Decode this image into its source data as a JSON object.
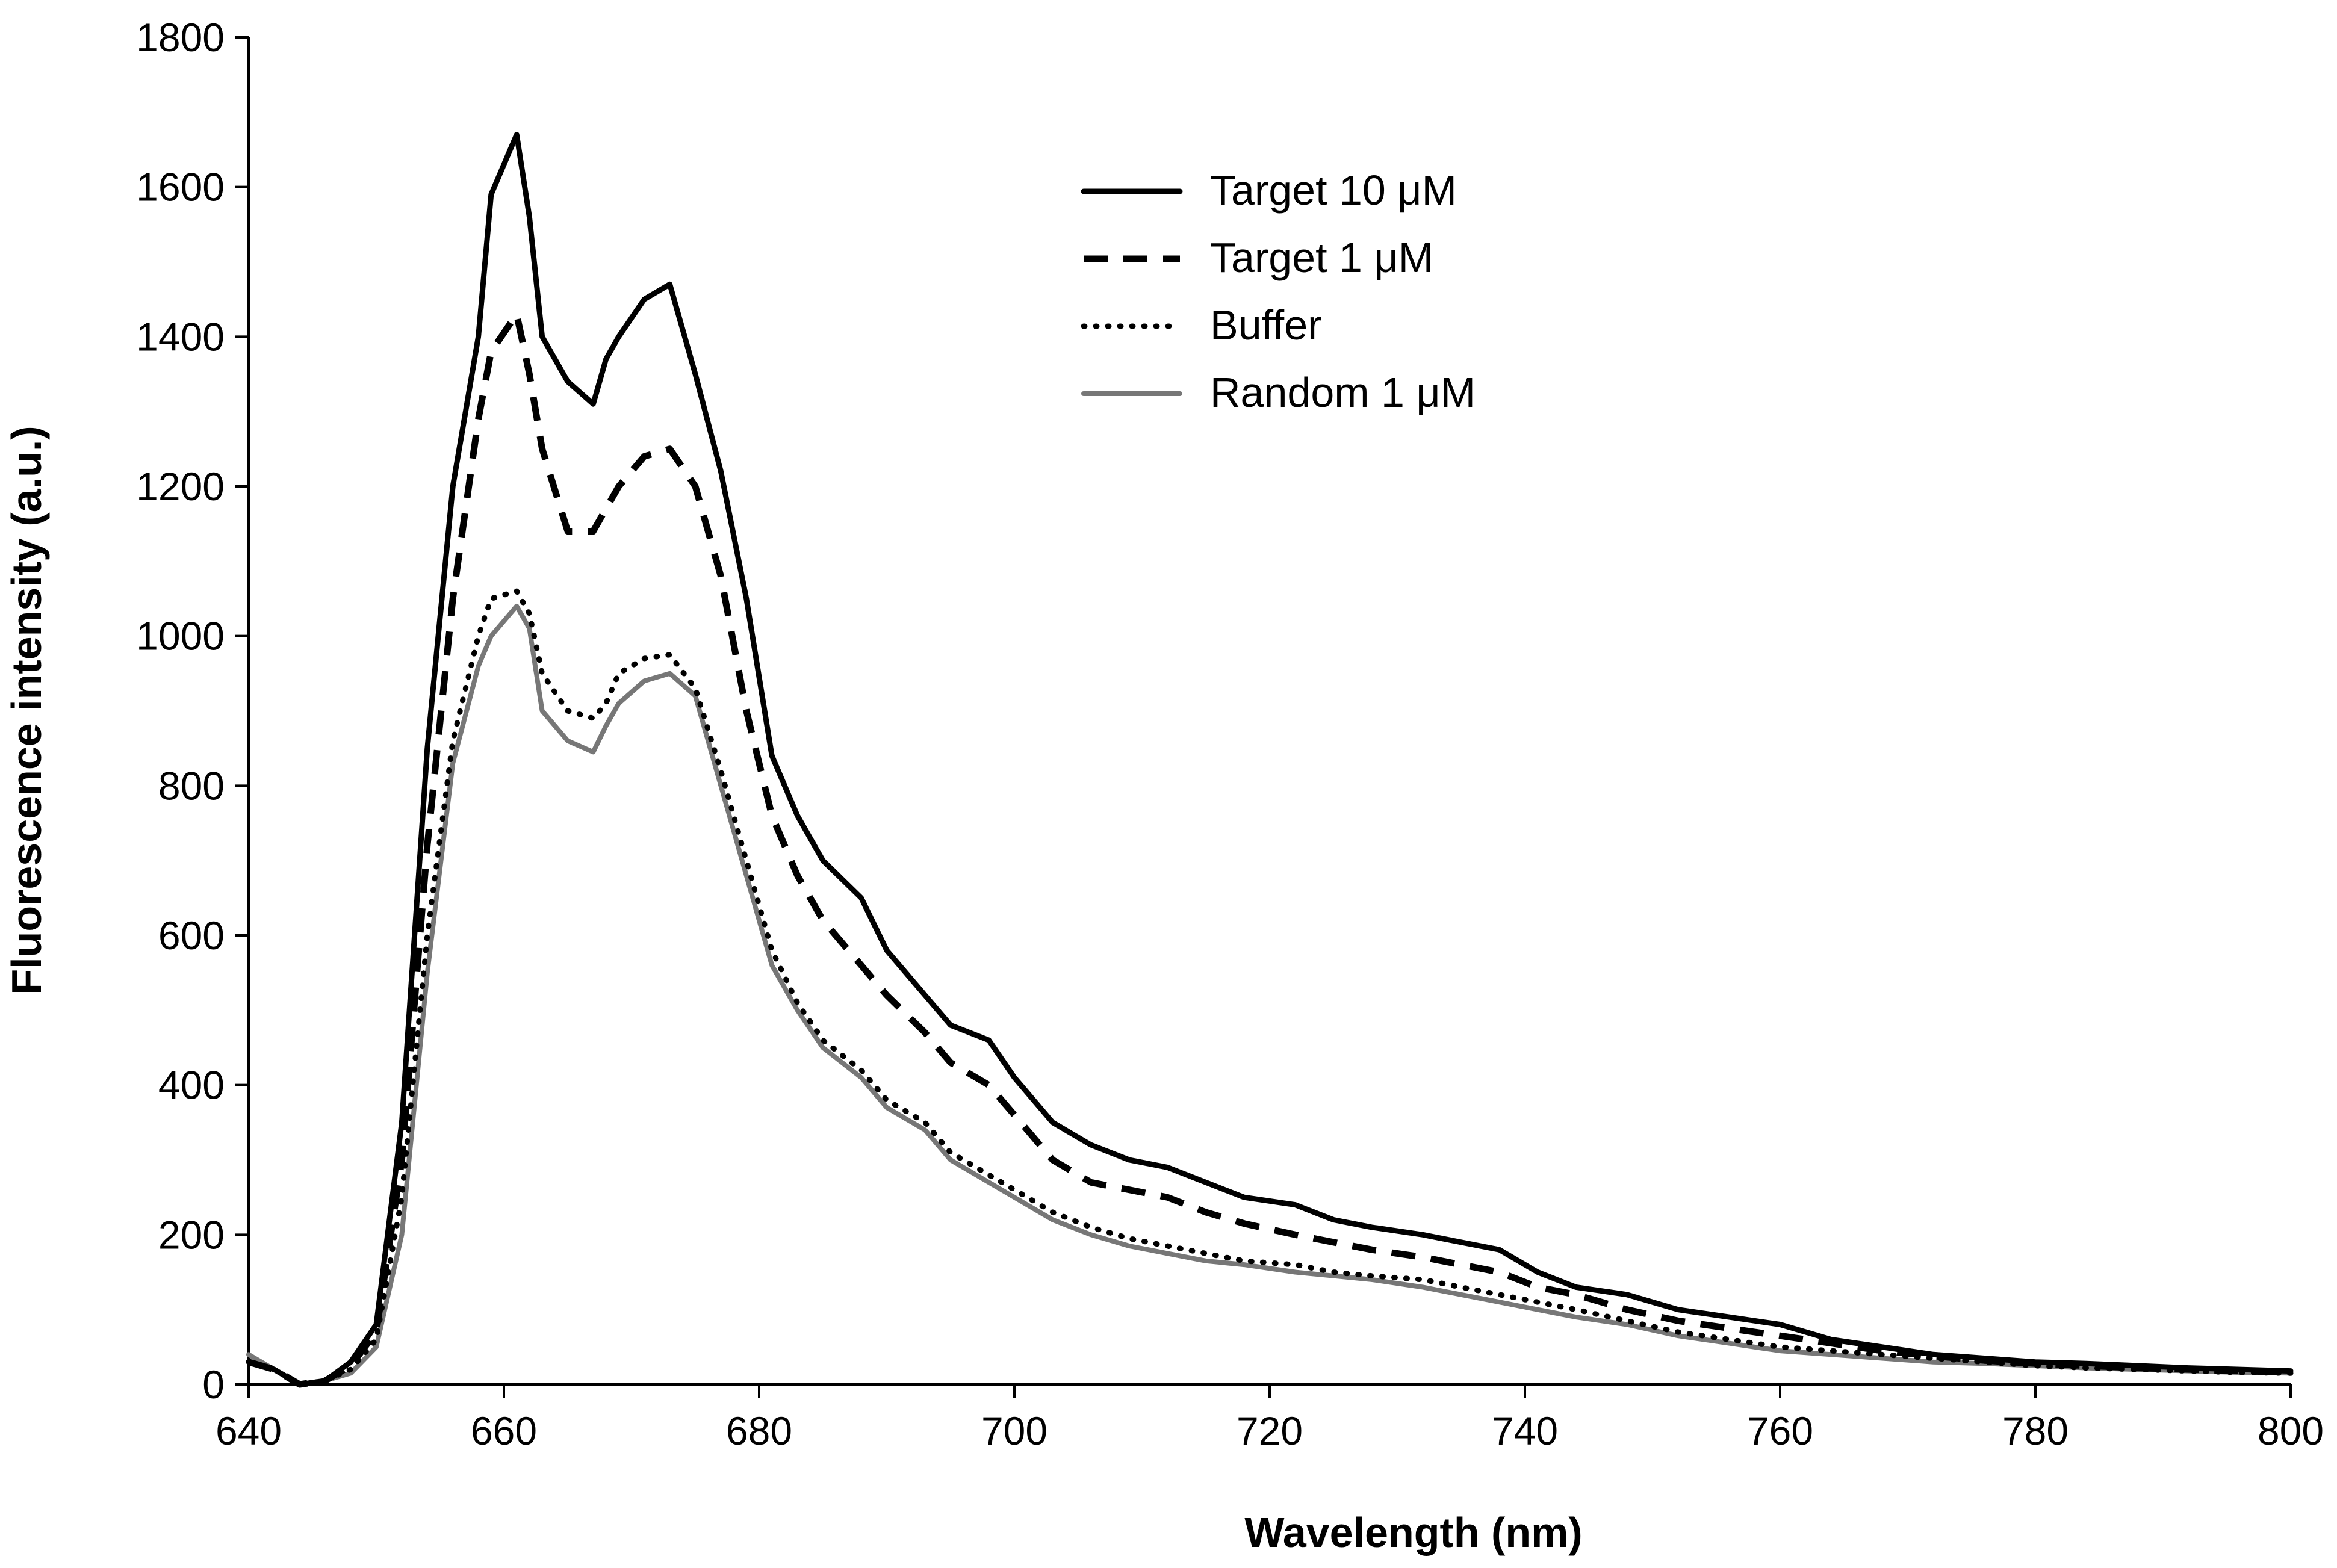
{
  "chart_data": {
    "type": "line",
    "title": "",
    "xlabel": "Wavelength (nm)",
    "ylabel": "Fluorescence intensity (a.u.)",
    "xlim": [
      640,
      800
    ],
    "ylim": [
      0,
      1800
    ],
    "xticks": [
      640,
      660,
      680,
      700,
      720,
      740,
      760,
      780,
      800
    ],
    "yticks": [
      0,
      200,
      400,
      600,
      800,
      1000,
      1200,
      1400,
      1600,
      1800
    ],
    "grid": false,
    "legend_position": "top-right",
    "series": [
      {
        "name": "Target 10 μM",
        "color": "#000000",
        "style": "solid",
        "x": [
          640,
          642,
          644,
          646,
          648,
          650,
          652,
          654,
          656,
          658,
          659,
          661,
          662,
          663,
          665,
          667,
          668,
          669,
          671,
          673,
          675,
          677,
          679,
          681,
          683,
          685,
          688,
          690,
          693,
          695,
          698,
          700,
          703,
          706,
          709,
          712,
          715,
          718,
          722,
          725,
          728,
          732,
          735,
          738,
          741,
          744,
          748,
          752,
          756,
          760,
          764,
          768,
          772,
          776,
          780,
          784,
          788,
          792,
          796,
          800
        ],
        "y": [
          30,
          20,
          0,
          5,
          30,
          80,
          350,
          850,
          1200,
          1400,
          1590,
          1670,
          1560,
          1400,
          1340,
          1310,
          1370,
          1400,
          1450,
          1470,
          1350,
          1220,
          1050,
          840,
          760,
          700,
          650,
          580,
          520,
          480,
          460,
          410,
          350,
          320,
          300,
          290,
          270,
          250,
          240,
          220,
          210,
          200,
          190,
          180,
          150,
          130,
          120,
          100,
          90,
          80,
          60,
          50,
          40,
          35,
          30,
          28,
          25,
          22,
          20,
          18
        ]
      },
      {
        "name": "Target 1 μM",
        "color": "#000000",
        "style": "dashed",
        "x": [
          640,
          642,
          644,
          646,
          648,
          650,
          652,
          654,
          656,
          658,
          659,
          661,
          662,
          663,
          665,
          667,
          668,
          669,
          671,
          673,
          675,
          677,
          679,
          681,
          683,
          685,
          688,
          690,
          693,
          695,
          698,
          700,
          703,
          706,
          709,
          712,
          715,
          718,
          722,
          725,
          728,
          732,
          735,
          738,
          741,
          744,
          748,
          752,
          756,
          760,
          764,
          768,
          772,
          776,
          780,
          784,
          788,
          792,
          796,
          800
        ],
        "y": [
          30,
          20,
          0,
          5,
          25,
          70,
          300,
          720,
          1050,
          1290,
          1380,
          1430,
          1350,
          1250,
          1140,
          1140,
          1170,
          1200,
          1240,
          1250,
          1200,
          1080,
          900,
          760,
          680,
          620,
          560,
          520,
          470,
          430,
          400,
          360,
          300,
          270,
          260,
          250,
          230,
          215,
          200,
          190,
          180,
          170,
          160,
          150,
          130,
          120,
          100,
          85,
          75,
          65,
          55,
          45,
          38,
          32,
          28,
          25,
          22,
          20,
          18,
          16
        ]
      },
      {
        "name": "Buffer",
        "color": "#000000",
        "style": "dotted",
        "x": [
          640,
          642,
          644,
          646,
          648,
          650,
          652,
          654,
          656,
          658,
          659,
          661,
          662,
          663,
          665,
          667,
          668,
          669,
          671,
          673,
          675,
          677,
          679,
          681,
          683,
          685,
          688,
          690,
          693,
          695,
          698,
          700,
          703,
          706,
          709,
          712,
          715,
          718,
          722,
          725,
          728,
          732,
          735,
          738,
          741,
          744,
          748,
          752,
          756,
          760,
          764,
          768,
          772,
          776,
          780,
          784,
          788,
          792,
          796,
          800
        ],
        "y": [
          30,
          20,
          0,
          5,
          20,
          60,
          250,
          600,
          860,
          1000,
          1050,
          1060,
          1030,
          950,
          900,
          890,
          910,
          950,
          970,
          975,
          930,
          820,
          700,
          580,
          510,
          460,
          420,
          380,
          350,
          310,
          280,
          260,
          230,
          210,
          195,
          185,
          175,
          165,
          160,
          150,
          145,
          140,
          130,
          120,
          110,
          100,
          85,
          70,
          60,
          50,
          45,
          40,
          35,
          30,
          25,
          22,
          20,
          18,
          16,
          15
        ]
      },
      {
        "name": "Random 1 μM",
        "color": "#777777",
        "style": "solid",
        "x": [
          640,
          642,
          644,
          646,
          648,
          650,
          652,
          654,
          656,
          658,
          659,
          661,
          662,
          663,
          665,
          667,
          668,
          669,
          671,
          673,
          675,
          677,
          679,
          681,
          683,
          685,
          688,
          690,
          693,
          695,
          698,
          700,
          703,
          706,
          709,
          712,
          715,
          718,
          722,
          725,
          728,
          732,
          735,
          738,
          741,
          744,
          748,
          752,
          756,
          760,
          764,
          768,
          772,
          776,
          780,
          784,
          788,
          792,
          796,
          800
        ],
        "y": [
          40,
          20,
          0,
          5,
          15,
          50,
          200,
          550,
          830,
          960,
          1000,
          1040,
          1010,
          900,
          860,
          845,
          880,
          910,
          940,
          950,
          920,
          800,
          680,
          560,
          500,
          450,
          410,
          370,
          340,
          300,
          270,
          250,
          220,
          200,
          185,
          175,
          165,
          160,
          150,
          145,
          140,
          130,
          120,
          110,
          100,
          90,
          80,
          65,
          55,
          45,
          40,
          35,
          30,
          28,
          25,
          22,
          20,
          18,
          16,
          15
        ]
      }
    ]
  }
}
